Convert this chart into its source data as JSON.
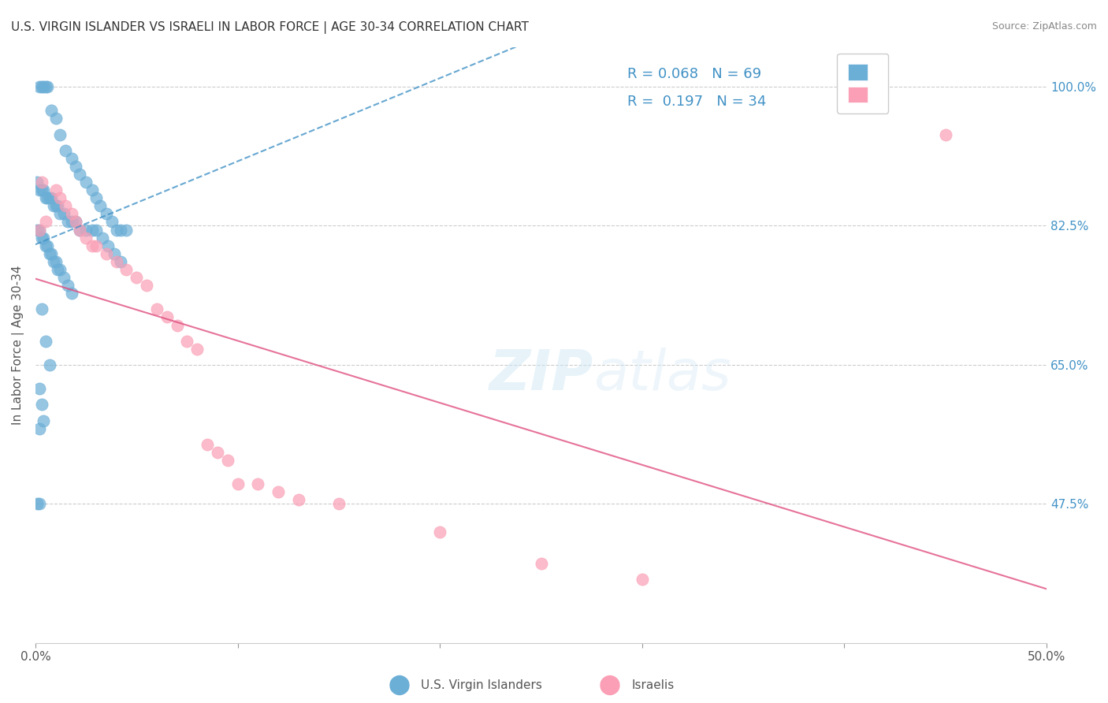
{
  "title": "U.S. VIRGIN ISLANDER VS ISRAELI IN LABOR FORCE | AGE 30-34 CORRELATION CHART",
  "source": "Source: ZipAtlas.com",
  "xlabel": "",
  "ylabel": "In Labor Force | Age 30-34",
  "xlim": [
    0.0,
    0.5
  ],
  "ylim": [
    0.3,
    1.05
  ],
  "x_ticks": [
    0.0,
    0.1,
    0.2,
    0.3,
    0.4,
    0.5
  ],
  "x_tick_labels": [
    "0.0%",
    "",
    "",
    "",
    "",
    "50.0%"
  ],
  "y_tick_labels": [
    "",
    "47.5%",
    "",
    "65.0%",
    "",
    "82.5%",
    "",
    "100.0%"
  ],
  "y_ticks": [
    0.3,
    0.475,
    0.55,
    0.65,
    0.735,
    0.825,
    0.9125,
    1.0
  ],
  "legend_r1": "R = 0.068",
  "legend_n1": "N = 69",
  "legend_r2": "R =  0.197",
  "legend_n2": "N = 34",
  "color_blue": "#6baed6",
  "color_pink": "#fa9fb5",
  "trendline_blue_color": "#4292c6",
  "trendline_pink_color": "#e05080",
  "watermark": "ZIPatlas",
  "blue_scatter_x": [
    0.002,
    0.003,
    0.004,
    0.005,
    0.006,
    0.008,
    0.01,
    0.012,
    0.015,
    0.018,
    0.02,
    0.022,
    0.025,
    0.028,
    0.03,
    0.032,
    0.035,
    0.038,
    0.04,
    0.042,
    0.045,
    0.001,
    0.002,
    0.003,
    0.004,
    0.005,
    0.006,
    0.007,
    0.008,
    0.009,
    0.01,
    0.011,
    0.012,
    0.014,
    0.016,
    0.018,
    0.02,
    0.022,
    0.025,
    0.028,
    0.03,
    0.033,
    0.036,
    0.039,
    0.042,
    0.001,
    0.002,
    0.003,
    0.004,
    0.005,
    0.006,
    0.007,
    0.008,
    0.009,
    0.01,
    0.011,
    0.012,
    0.014,
    0.016,
    0.018,
    0.003,
    0.005,
    0.007,
    0.002,
    0.003,
    0.001,
    0.002,
    0.004,
    0.002
  ],
  "blue_scatter_y": [
    1.0,
    1.0,
    1.0,
    1.0,
    1.0,
    0.97,
    0.96,
    0.94,
    0.92,
    0.91,
    0.9,
    0.89,
    0.88,
    0.87,
    0.86,
    0.85,
    0.84,
    0.83,
    0.82,
    0.82,
    0.82,
    0.88,
    0.87,
    0.87,
    0.87,
    0.86,
    0.86,
    0.86,
    0.86,
    0.85,
    0.85,
    0.85,
    0.84,
    0.84,
    0.83,
    0.83,
    0.83,
    0.82,
    0.82,
    0.82,
    0.82,
    0.81,
    0.8,
    0.79,
    0.78,
    0.82,
    0.82,
    0.81,
    0.81,
    0.8,
    0.8,
    0.79,
    0.79,
    0.78,
    0.78,
    0.77,
    0.77,
    0.76,
    0.75,
    0.74,
    0.72,
    0.68,
    0.65,
    0.62,
    0.6,
    0.475,
    0.475,
    0.58,
    0.57
  ],
  "pink_scatter_x": [
    0.002,
    0.003,
    0.005,
    0.01,
    0.012,
    0.015,
    0.018,
    0.02,
    0.022,
    0.025,
    0.028,
    0.03,
    0.035,
    0.04,
    0.045,
    0.05,
    0.055,
    0.06,
    0.065,
    0.07,
    0.075,
    0.08,
    0.085,
    0.09,
    0.095,
    0.1,
    0.11,
    0.12,
    0.13,
    0.15,
    0.2,
    0.25,
    0.3,
    0.45
  ],
  "pink_scatter_y": [
    0.82,
    0.88,
    0.83,
    0.87,
    0.86,
    0.85,
    0.84,
    0.83,
    0.82,
    0.81,
    0.8,
    0.8,
    0.79,
    0.78,
    0.77,
    0.76,
    0.75,
    0.72,
    0.71,
    0.7,
    0.68,
    0.67,
    0.55,
    0.54,
    0.53,
    0.5,
    0.5,
    0.49,
    0.48,
    0.475,
    0.44,
    0.4,
    0.38,
    0.94
  ]
}
